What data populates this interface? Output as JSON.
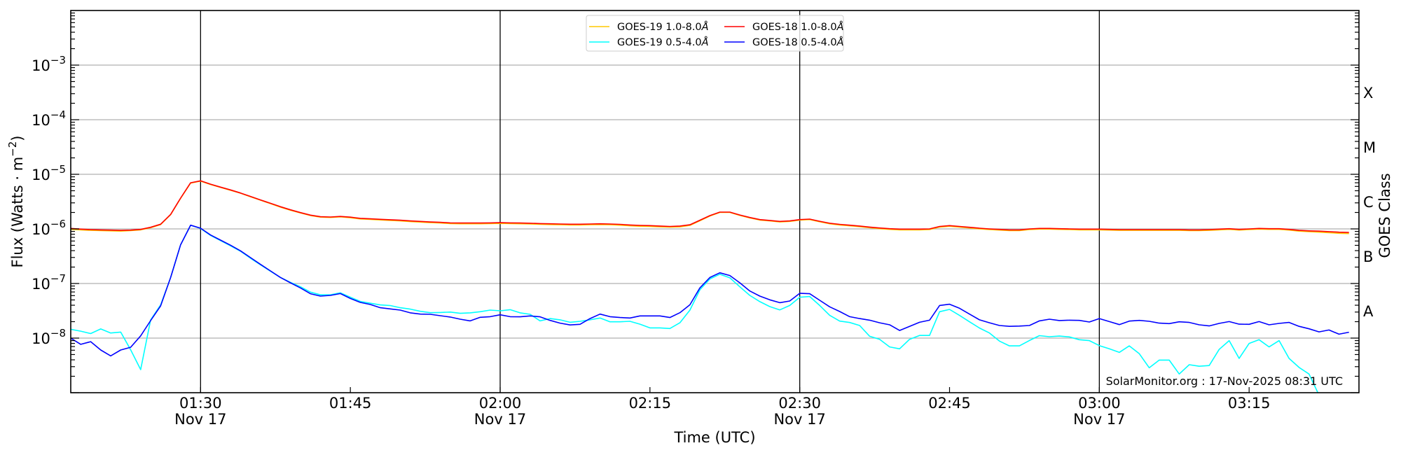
{
  "chart_data": {
    "type": "line",
    "yscale": "log",
    "ylim": [
      1e-09,
      0.01
    ],
    "xlim": [
      "01:17",
      "03:26"
    ],
    "grid": true,
    "legend_placement": "top-center",
    "xlabel": "Time (UTC)",
    "ylabel": {
      "main": "Flux (Watts · m",
      "exp": "−2",
      "end": ")"
    },
    "y2label": "GOES Class",
    "xticks": [
      {
        "value": "01:30",
        "label": "01:30",
        "sublabel": "Nov 17"
      },
      {
        "value": "01:45",
        "label": "01:45",
        "sublabel": ""
      },
      {
        "value": "02:00",
        "label": "02:00",
        "sublabel": "Nov 17"
      },
      {
        "value": "02:15",
        "label": "02:15",
        "sublabel": ""
      },
      {
        "value": "02:30",
        "label": "02:30",
        "sublabel": "Nov 17"
      },
      {
        "value": "02:45",
        "label": "02:45",
        "sublabel": ""
      },
      {
        "value": "03:00",
        "label": "03:00",
        "sublabel": "Nov 17"
      },
      {
        "value": "03:15",
        "label": "03:15",
        "sublabel": ""
      }
    ],
    "vlines": [
      "01:30",
      "02:00",
      "02:30",
      "03:00"
    ],
    "yticks": [
      {
        "value": 0.001,
        "base": "10",
        "exp": "−3"
      },
      {
        "value": 0.0001,
        "base": "10",
        "exp": "−4"
      },
      {
        "value": 1e-05,
        "base": "10",
        "exp": "−5"
      },
      {
        "value": 1e-06,
        "base": "10",
        "exp": "−6"
      },
      {
        "value": 1e-07,
        "base": "10",
        "exp": "−7"
      },
      {
        "value": 1e-08,
        "base": "10",
        "exp": "−8"
      }
    ],
    "goes_classes": [
      {
        "label": "A",
        "low": 1e-08,
        "high": 1e-07
      },
      {
        "label": "B",
        "low": 1e-07,
        "high": 1e-06
      },
      {
        "label": "C",
        "low": 1e-06,
        "high": 1e-05
      },
      {
        "label": "M",
        "low": 1e-05,
        "high": 0.0001
      },
      {
        "label": "X",
        "low": 0.0001,
        "high": 0.001
      }
    ],
    "x": [
      "01:17",
      "01:18",
      "01:19",
      "01:20",
      "01:21",
      "01:22",
      "01:23",
      "01:24",
      "01:25",
      "01:26",
      "01:27",
      "01:28",
      "01:29",
      "01:30",
      "01:31",
      "01:32",
      "01:33",
      "01:34",
      "01:35",
      "01:36",
      "01:37",
      "01:38",
      "01:39",
      "01:40",
      "01:41",
      "01:42",
      "01:43",
      "01:44",
      "01:45",
      "01:46",
      "01:47",
      "01:48",
      "01:49",
      "01:50",
      "01:51",
      "01:52",
      "01:53",
      "01:54",
      "01:55",
      "01:56",
      "01:57",
      "01:58",
      "01:59",
      "02:00",
      "02:01",
      "02:02",
      "02:03",
      "02:04",
      "02:05",
      "02:06",
      "02:07",
      "02:08",
      "02:09",
      "02:10",
      "02:11",
      "02:12",
      "02:13",
      "02:14",
      "02:15",
      "02:16",
      "02:17",
      "02:18",
      "02:19",
      "02:20",
      "02:21",
      "02:22",
      "02:23",
      "02:24",
      "02:25",
      "02:26",
      "02:27",
      "02:28",
      "02:29",
      "02:30",
      "02:31",
      "02:32",
      "02:33",
      "02:34",
      "02:35",
      "02:36",
      "02:37",
      "02:38",
      "02:39",
      "02:40",
      "02:41",
      "02:42",
      "02:43",
      "02:44",
      "02:45",
      "02:46",
      "02:47",
      "02:48",
      "02:49",
      "02:50",
      "02:51",
      "02:52",
      "02:53",
      "02:54",
      "02:55",
      "02:56",
      "02:57",
      "02:58",
      "02:59",
      "03:00",
      "03:01",
      "03:02",
      "03:03",
      "03:04",
      "03:05",
      "03:06",
      "03:07",
      "03:08",
      "03:09",
      "03:10",
      "03:11",
      "03:12",
      "03:13",
      "03:14",
      "03:15",
      "03:16",
      "03:17",
      "03:18",
      "03:19",
      "03:20",
      "03:21",
      "03:22",
      "03:23",
      "03:24",
      "03:25"
    ],
    "series": [
      {
        "name": "GOES-19 1.0-8.0Å",
        "color": "#ffc800",
        "values": [
          9.8e-07,
          9.6e-07,
          9.4e-07,
          9.3e-07,
          9.2e-07,
          9.1e-07,
          9.3e-07,
          9.6e-07,
          1.05e-06,
          1.2e-06,
          1.82e-06,
          3.62e-06,
          6.9e-06,
          7.5e-06,
          6.5e-06,
          5.75e-06,
          5.1e-06,
          4.5e-06,
          3.88e-06,
          3.35e-06,
          2.9e-06,
          2.5e-06,
          2.2e-06,
          1.96e-06,
          1.76e-06,
          1.64e-06,
          1.62e-06,
          1.66e-06,
          1.6e-06,
          1.52e-06,
          1.49e-06,
          1.46e-06,
          1.43e-06,
          1.4e-06,
          1.36e-06,
          1.33e-06,
          1.3e-06,
          1.28e-06,
          1.25e-06,
          1.24e-06,
          1.24e-06,
          1.24e-06,
          1.25e-06,
          1.26e-06,
          1.25e-06,
          1.24e-06,
          1.23e-06,
          1.21e-06,
          1.2e-06,
          1.19e-06,
          1.18e-06,
          1.18e-06,
          1.19e-06,
          1.2e-06,
          1.19e-06,
          1.17e-06,
          1.14e-06,
          1.12e-06,
          1.11e-06,
          1.09e-06,
          1.08e-06,
          1.09e-06,
          1.16e-06,
          1.41e-06,
          1.72e-06,
          2e-06,
          2e-06,
          1.77e-06,
          1.59e-06,
          1.45e-06,
          1.4e-06,
          1.34e-06,
          1.37e-06,
          1.45e-06,
          1.48e-06,
          1.35e-06,
          1.24e-06,
          1.18e-06,
          1.14e-06,
          1.1e-06,
          1.05e-06,
          1.01e-06,
          9.8e-07,
          9.6e-07,
          9.6e-07,
          9.6e-07,
          9.7e-07,
          1.08e-06,
          1.12e-06,
          1.08e-06,
          1.04e-06,
          1e-06,
          9.7e-07,
          9.5e-07,
          9.3e-07,
          9.3e-07,
          9.7e-07,
          9.9e-07,
          9.9e-07,
          9.8e-07,
          9.7e-07,
          9.6e-07,
          9.6e-07,
          9.6e-07,
          9.5e-07,
          9.4e-07,
          9.4e-07,
          9.4e-07,
          9.4e-07,
          9.4e-07,
          9.4e-07,
          9.4e-07,
          9.3e-07,
          9.3e-07,
          9.4e-07,
          9.6e-07,
          9.8e-07,
          9.5e-07,
          9.7e-07,
          9.9e-07,
          9.8e-07,
          9.8e-07,
          9.5e-07,
          9.1e-07,
          8.9e-07,
          8.7e-07,
          8.5e-07,
          8.3e-07,
          8.2e-07
        ]
      },
      {
        "name": "GOES-18 1.0-8.0Å",
        "color": "#ff0000",
        "values": [
          1.02e-06,
          9.9e-07,
          9.7e-07,
          9.6e-07,
          9.5e-07,
          9.4e-07,
          9.5e-07,
          9.8e-07,
          1.07e-06,
          1.22e-06,
          1.84e-06,
          3.66e-06,
          7e-06,
          7.6e-06,
          6.6e-06,
          5.82e-06,
          5.17e-06,
          4.55e-06,
          3.93e-06,
          3.39e-06,
          2.95e-06,
          2.55e-06,
          2.24e-06,
          1.99e-06,
          1.79e-06,
          1.67e-06,
          1.65e-06,
          1.69e-06,
          1.64e-06,
          1.56e-06,
          1.53e-06,
          1.5e-06,
          1.47e-06,
          1.44e-06,
          1.4e-06,
          1.37e-06,
          1.34e-06,
          1.32e-06,
          1.29e-06,
          1.28e-06,
          1.28e-06,
          1.28e-06,
          1.29e-06,
          1.3e-06,
          1.29e-06,
          1.28e-06,
          1.27e-06,
          1.25e-06,
          1.24e-06,
          1.23e-06,
          1.22e-06,
          1.22e-06,
          1.23e-06,
          1.24e-06,
          1.23e-06,
          1.21e-06,
          1.18e-06,
          1.16e-06,
          1.15e-06,
          1.13e-06,
          1.11e-06,
          1.13e-06,
          1.19e-06,
          1.44e-06,
          1.75e-06,
          2.03e-06,
          2.03e-06,
          1.8e-06,
          1.62e-06,
          1.48e-06,
          1.43e-06,
          1.37e-06,
          1.4e-06,
          1.48e-06,
          1.51e-06,
          1.38e-06,
          1.27e-06,
          1.21e-06,
          1.17e-06,
          1.13e-06,
          1.08e-06,
          1.04e-06,
          1.01e-06,
          9.9e-07,
          9.9e-07,
          9.9e-07,
          1e-06,
          1.11e-06,
          1.15e-06,
          1.11e-06,
          1.07e-06,
          1.03e-06,
          1e-06,
          9.8e-07,
          9.6e-07,
          9.6e-07,
          1e-06,
          1.02e-06,
          1.02e-06,
          1.01e-06,
          1e-06,
          9.9e-07,
          9.9e-07,
          9.9e-07,
          9.8e-07,
          9.7e-07,
          9.7e-07,
          9.7e-07,
          9.7e-07,
          9.7e-07,
          9.7e-07,
          9.7e-07,
          9.6e-07,
          9.6e-07,
          9.7e-07,
          9.9e-07,
          1.01e-06,
          9.8e-07,
          1e-06,
          1.02e-06,
          1.01e-06,
          1.01e-06,
          9.8e-07,
          9.4e-07,
          9.2e-07,
          9.1e-07,
          8.9e-07,
          8.7e-07,
          8.6e-07
        ]
      },
      {
        "name": "GOES-19 0.5-4.0Å",
        "color": "#00ffff",
        "values": [
          1.45e-08,
          1.34e-08,
          1.21e-08,
          1.47e-08,
          1.24e-08,
          1.29e-08,
          6.1e-09,
          2.65e-09,
          2.15e-08,
          4.05e-08,
          1.29e-07,
          5.12e-07,
          1.17e-06,
          1.02e-06,
          7.6e-07,
          6.1e-07,
          4.9e-07,
          3.9e-07,
          2.9e-07,
          2.2e-07,
          1.68e-07,
          1.29e-07,
          1.05e-07,
          8.7e-08,
          6.95e-08,
          6.2e-08,
          6.2e-08,
          6.75e-08,
          5.6e-08,
          4.7e-08,
          4.35e-08,
          4.05e-08,
          3.95e-08,
          3.6e-08,
          3.39e-08,
          3.1e-08,
          2.92e-08,
          2.95e-08,
          3e-08,
          2.84e-08,
          2.9e-08,
          3.04e-08,
          3.26e-08,
          3.16e-08,
          3.32e-08,
          2.9e-08,
          2.73e-08,
          2.07e-08,
          2.28e-08,
          2.16e-08,
          1.95e-08,
          2.03e-08,
          2.16e-08,
          2.33e-08,
          1.99e-08,
          1.99e-08,
          2.03e-08,
          1.8e-08,
          1.54e-08,
          1.54e-08,
          1.5e-08,
          1.91e-08,
          3.26e-08,
          7.67e-08,
          1.21e-07,
          1.48e-07,
          1.27e-07,
          8.7e-08,
          6.05e-08,
          4.65e-08,
          3.78e-08,
          3.29e-08,
          3.96e-08,
          5.6e-08,
          5.78e-08,
          3.96e-08,
          2.62e-08,
          2.05e-08,
          1.93e-08,
          1.7e-08,
          1.08e-08,
          9.5e-09,
          6.9e-09,
          6.36e-09,
          9.5e-09,
          1.12e-08,
          1.12e-08,
          3.04e-08,
          3.35e-08,
          2.6e-08,
          1.99e-08,
          1.53e-08,
          1.24e-08,
          8.8e-09,
          7.2e-09,
          7.2e-09,
          9.05e-09,
          1.11e-08,
          1.06e-08,
          1.09e-08,
          1.05e-08,
          9.34e-09,
          9e-09,
          7.3e-09,
          6.36e-09,
          5.48e-09,
          7.2e-09,
          5.18e-09,
          2.86e-09,
          3.96e-09,
          3.96e-09,
          2.2e-09,
          3.26e-09,
          3.05e-09,
          3.14e-09,
          6.2e-09,
          9e-09,
          4.25e-09,
          7.98e-09,
          9.34e-09,
          6.9e-09,
          9e-09,
          4.25e-09,
          2.9e-09,
          2.2e-09,
          9e-10,
          9e-10,
          9e-10,
          9e-10
        ]
      },
      {
        "name": "GOES-18 0.5-4.0Å",
        "color": "#0000ff",
        "values": [
          1e-08,
          7.7e-09,
          8.6e-09,
          6.05e-09,
          4.73e-09,
          6.05e-09,
          6.8e-09,
          1.1e-08,
          2.09e-08,
          3.89e-08,
          1.29e-07,
          5.12e-07,
          1.17e-06,
          1.03e-06,
          7.74e-07,
          6.24e-07,
          5.02e-07,
          3.97e-07,
          2.98e-07,
          2.24e-07,
          1.7e-07,
          1.29e-07,
          1.03e-07,
          8.3e-08,
          6.49e-08,
          5.88e-08,
          6.05e-08,
          6.54e-08,
          5.32e-08,
          4.5e-08,
          4.12e-08,
          3.6e-08,
          3.42e-08,
          3.26e-08,
          2.9e-08,
          2.75e-08,
          2.73e-08,
          2.57e-08,
          2.43e-08,
          2.22e-08,
          2.07e-08,
          2.4e-08,
          2.47e-08,
          2.67e-08,
          2.47e-08,
          2.45e-08,
          2.55e-08,
          2.45e-08,
          2.11e-08,
          1.88e-08,
          1.74e-08,
          1.79e-08,
          2.28e-08,
          2.75e-08,
          2.47e-08,
          2.38e-08,
          2.33e-08,
          2.55e-08,
          2.55e-08,
          2.55e-08,
          2.38e-08,
          2.92e-08,
          4.08e-08,
          8.3e-08,
          1.29e-07,
          1.57e-07,
          1.4e-07,
          1.03e-07,
          7.3e-08,
          5.88e-08,
          5.02e-08,
          4.46e-08,
          4.78e-08,
          6.62e-08,
          6.49e-08,
          4.92e-08,
          3.74e-08,
          3.07e-08,
          2.47e-08,
          2.28e-08,
          2.13e-08,
          1.91e-08,
          1.75e-08,
          1.38e-08,
          1.64e-08,
          1.95e-08,
          2.13e-08,
          3.96e-08,
          4.17e-08,
          3.52e-08,
          2.75e-08,
          2.16e-08,
          1.91e-08,
          1.7e-08,
          1.64e-08,
          1.66e-08,
          1.7e-08,
          2.07e-08,
          2.22e-08,
          2.1e-08,
          2.13e-08,
          2.11e-08,
          1.97e-08,
          2.28e-08,
          2.01e-08,
          1.77e-08,
          2.05e-08,
          2.11e-08,
          2.03e-08,
          1.88e-08,
          1.84e-08,
          1.99e-08,
          1.94e-08,
          1.75e-08,
          1.67e-08,
          1.86e-08,
          2.01e-08,
          1.8e-08,
          1.79e-08,
          2.01e-08,
          1.75e-08,
          1.86e-08,
          1.94e-08,
          1.64e-08,
          1.48e-08,
          1.3e-08,
          1.41e-08,
          1.18e-08,
          1.28e-08
        ]
      }
    ],
    "legend_order": [
      0,
      2,
      1,
      3
    ]
  },
  "watermark": "SolarMonitor.org : 17-Nov-2025 08:31 UTC",
  "colors": {
    "grid": "#b0b0b0",
    "axis": "#000000",
    "vline": "#000000"
  }
}
